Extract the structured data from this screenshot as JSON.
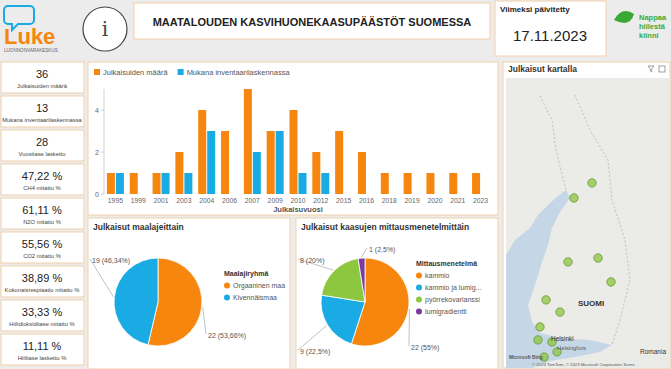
{
  "header": {
    "logo": "Luke",
    "logo_subtitle": "LUONNONVARAKESKUS",
    "info_icon": "i",
    "title": "MAATALOUDEN KASVIHUONEKAASUPÄÄSTÖT SUOMESSA",
    "updated_label": "Viimeksi päivitetty",
    "updated_date": "17.11.2023",
    "partner_logo": [
      "Nappaa",
      "hiilestä",
      "kiinni"
    ]
  },
  "kpis": [
    {
      "value": 36,
      "label": "Julkaisuiden määrä"
    },
    {
      "value": 13,
      "label": "Mukana inventaarilaskennassa"
    },
    {
      "value": 28,
      "label": "Vuositase laskettu"
    },
    {
      "value": 47.22,
      "value_label": "47,22 %",
      "label": "CH4 mitattu %"
    },
    {
      "value": 61.11,
      "value_label": "61,11 %",
      "label": "N2O mitattu %"
    },
    {
      "value": 55.56,
      "value_label": "55,56 %",
      "label": "CO2 mitattu %"
    },
    {
      "value": 38.89,
      "value_label": "38,89 %",
      "label": "Kokonaisrespiaatio mitattu %"
    },
    {
      "value": 33.33,
      "value_label": "33,33 %",
      "label": "Hiilidioksiditase mitattu %"
    },
    {
      "value": 11.11,
      "value_label": "11,11 %",
      "label": "Hiilitase laskettu %"
    }
  ],
  "chart_data": [
    {
      "type": "bar",
      "x_label": "Julkaisuvuosi",
      "categories": [
        "1995",
        "1999",
        "2001",
        "2003",
        "2004",
        "2006",
        "2007",
        "2009",
        "2010",
        "2012",
        "2015",
        "2016",
        "2018",
        "2019",
        "2020",
        "2021",
        "2023"
      ],
      "series": [
        {
          "name": "Julkaisuiden määrä",
          "color": "#F7860F",
          "values": [
            1,
            1,
            1,
            2,
            4,
            3,
            5,
            3,
            4,
            2,
            3,
            2,
            1,
            1,
            1,
            1,
            1
          ]
        },
        {
          "name": "Mukana inventaarilaskennassa",
          "color": "#1AABE4",
          "values": [
            1,
            0,
            1,
            1,
            3,
            0,
            2,
            3,
            1,
            1,
            0,
            0,
            0,
            0,
            0,
            0,
            0
          ]
        }
      ],
      "ylim": [
        0,
        5
      ],
      "yticks": [
        0,
        2,
        4
      ],
      "grid": false,
      "legend": "top-left"
    },
    {
      "type": "pie",
      "title": "Julkaisut maalajeittain",
      "legend_title": "Maalajiryhmä",
      "categories": [
        "Orgaaninen maa",
        "Kivennäismaa"
      ],
      "values": [
        22,
        19
      ],
      "value_labels": [
        "22 (53,66%)",
        "19 (46,34%)"
      ],
      "colors": [
        "#F7860F",
        "#1AABE4"
      ],
      "data_labels": true,
      "legend": "right"
    },
    {
      "type": "pie",
      "title": "Julkaisut kaasujen mittausmenetelmittäin",
      "legend_title": "Mittausmenetelmä",
      "categories": [
        "kammio",
        "kammio ja lumig...",
        "pyörrekovarianssi",
        "lumigradientti"
      ],
      "values": [
        22,
        9,
        8,
        1
      ],
      "value_labels": [
        "22 (55%)",
        "9 (22,5%)",
        "8 (20%)",
        "1 (2,5%)"
      ],
      "colors": [
        "#F7860F",
        "#1AABE4",
        "#8DC63F",
        "#7B3A9E"
      ],
      "data_labels": true,
      "legend": "right"
    }
  ],
  "map": {
    "title": "Julkaisut kartalla",
    "country": "SUOMI",
    "city": "Helsinki",
    "city_alt": "Helsingfors",
    "region": "Romania",
    "provider": "Microsoft Bing",
    "attribution": "© 2023 TomTom, © 2023 Microsoft Corporation  Terms",
    "points": [
      {
        "lat": 66.32,
        "lon": 29.0
      },
      {
        "lat": 65.74,
        "lon": 27.36
      },
      {
        "lat": 63.43,
        "lon": 29.55
      },
      {
        "lat": 62.51,
        "lon": 30.73
      },
      {
        "lat": 63.28,
        "lon": 26.82
      },
      {
        "lat": 61.82,
        "lon": 24.82
      },
      {
        "lat": 61.35,
        "lon": 26.09
      },
      {
        "lat": 60.78,
        "lon": 24.27
      },
      {
        "lat": 60.2,
        "lon": 25.36
      },
      {
        "lat": 59.82,
        "lon": 25.82
      },
      {
        "lat": 59.62,
        "lon": 24.64
      },
      {
        "lat": 60.28,
        "lon": 24.09
      }
    ]
  }
}
